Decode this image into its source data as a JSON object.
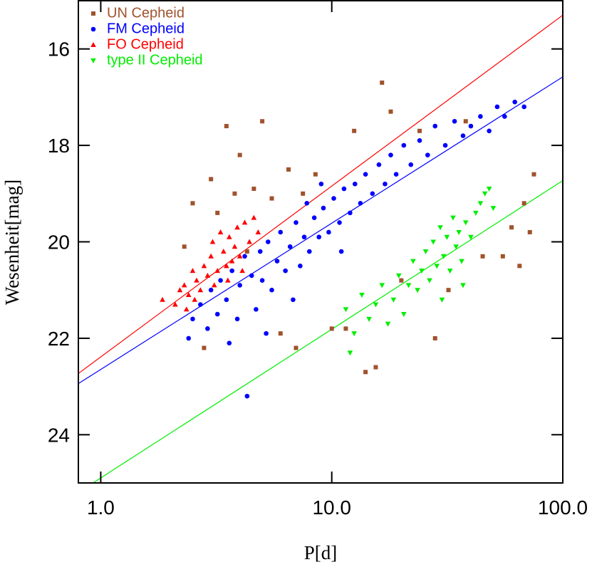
{
  "chart_data": {
    "type": "scatter",
    "x_label": "P[d]",
    "y_label": "Wesenheit[mag]",
    "x_scale": "log",
    "xlim": [
      0.8,
      100
    ],
    "ylim": [
      25,
      15
    ],
    "xticks": [
      {
        "value": 1,
        "label": "1.0"
      },
      {
        "value": 10,
        "label": "10.0"
      },
      {
        "value": 100,
        "label": "100.0"
      }
    ],
    "yticks": [
      16,
      18,
      20,
      22,
      24
    ],
    "legend": "top-left",
    "series": [
      {
        "name": "UN Cepheid",
        "color": "#a0522d",
        "marker": "square",
        "x": [
          2.3,
          2.5,
          2.8,
          3.0,
          3.2,
          3.5,
          3.8,
          4.0,
          4.3,
          4.6,
          5.0,
          5.5,
          6.0,
          6.5,
          7.0,
          7.5,
          8.5,
          10.0,
          11.5,
          12.5,
          14.0,
          15.5,
          16.5,
          18.0,
          20.0,
          24.0,
          28.0,
          32.0,
          38.0,
          45.0,
          55.0,
          60.0,
          65.0,
          72.0,
          75.0,
          68.0
        ],
        "values": [
          20.1,
          19.2,
          22.2,
          18.7,
          19.4,
          17.6,
          19.0,
          18.2,
          20.2,
          18.9,
          17.5,
          19.1,
          21.9,
          18.5,
          22.2,
          19.0,
          18.6,
          21.8,
          21.8,
          17.7,
          22.7,
          22.6,
          16.7,
          17.3,
          20.8,
          17.7,
          22.0,
          21.0,
          17.5,
          20.3,
          20.3,
          19.7,
          20.5,
          19.8,
          18.6,
          19.2
        ]
      },
      {
        "name": "FM Cepheid",
        "color": "#0000ff",
        "marker": "circle",
        "x": [
          2.4,
          2.5,
          2.7,
          2.9,
          3.0,
          3.2,
          3.3,
          3.5,
          3.7,
          3.9,
          4.0,
          4.2,
          4.3,
          4.5,
          4.7,
          4.9,
          5.0,
          5.3,
          5.5,
          5.8,
          6.0,
          6.3,
          6.6,
          7.0,
          7.3,
          7.6,
          8.0,
          8.4,
          8.8,
          9.2,
          9.7,
          10.2,
          10.8,
          11.3,
          12.0,
          12.6,
          13.3,
          14.0,
          15.0,
          16.0,
          17.0,
          18.0,
          19.0,
          20.5,
          22.0,
          24.0,
          26.0,
          28.0,
          31.0,
          34.0,
          37.0,
          40.0,
          44.0,
          48.0,
          52.0,
          56.0,
          62.0,
          68.0,
          5.2,
          6.8,
          3.6,
          11.0,
          9.0,
          7.8
        ],
        "values": [
          22.0,
          21.6,
          21.3,
          21.8,
          21.0,
          21.5,
          20.8,
          21.2,
          20.6,
          21.6,
          20.9,
          20.3,
          23.2,
          20.7,
          21.4,
          20.2,
          20.8,
          20.0,
          21.0,
          20.4,
          19.8,
          20.6,
          20.1,
          19.6,
          20.5,
          19.9,
          20.2,
          19.5,
          19.9,
          19.3,
          19.8,
          19.1,
          19.6,
          18.9,
          19.4,
          18.8,
          19.2,
          18.6,
          19.0,
          18.4,
          18.8,
          18.2,
          18.6,
          18.0,
          18.4,
          17.9,
          18.2,
          17.6,
          18.0,
          17.5,
          17.8,
          17.6,
          17.4,
          17.7,
          17.2,
          17.4,
          17.1,
          17.2,
          21.9,
          21.2,
          22.1,
          20.2,
          18.8,
          19.2
        ]
      },
      {
        "name": "FO Cepheid",
        "color": "#ff0000",
        "marker": "triangle-up",
        "x": [
          1.85,
          2.1,
          2.2,
          2.3,
          2.4,
          2.5,
          2.6,
          2.7,
          2.8,
          2.9,
          3.0,
          3.1,
          3.2,
          3.3,
          3.4,
          3.5,
          3.6,
          3.7,
          3.8,
          3.9,
          4.0,
          4.2,
          4.4,
          4.6,
          4.8,
          2.35,
          2.55,
          3.05,
          3.55,
          4.1
        ],
        "values": [
          21.2,
          21.3,
          21.0,
          20.9,
          21.1,
          20.6,
          20.8,
          21.0,
          20.5,
          20.7,
          20.3,
          20.9,
          20.6,
          19.8,
          20.2,
          20.5,
          19.9,
          20.4,
          20.1,
          19.7,
          20.3,
          19.6,
          20.0,
          19.5,
          19.8,
          21.4,
          21.2,
          20.0,
          20.8,
          20.6
        ]
      },
      {
        "name": "type II Cepheid",
        "color": "#00ee00",
        "marker": "triangle-down",
        "x": [
          11.5,
          12.5,
          13.5,
          14.5,
          15.5,
          16.5,
          17.5,
          18.5,
          19.5,
          20.5,
          21.5,
          22.5,
          23.5,
          24.5,
          25.5,
          26.5,
          27.5,
          28.5,
          29.5,
          30.5,
          31.5,
          32.5,
          33.5,
          34.5,
          35.5,
          36.5,
          38.0,
          40.0,
          42.0,
          44.0,
          46.0,
          48.0,
          50.0,
          12.0,
          30.0,
          37.0
        ],
        "values": [
          21.4,
          21.9,
          21.1,
          21.6,
          21.3,
          20.9,
          21.7,
          21.2,
          20.7,
          21.5,
          20.9,
          20.4,
          21.0,
          20.6,
          20.2,
          20.8,
          20.0,
          20.5,
          19.7,
          20.3,
          19.9,
          20.6,
          19.5,
          20.1,
          19.8,
          20.4,
          19.6,
          19.9,
          19.4,
          19.2,
          19.0,
          18.9,
          19.3,
          22.3,
          21.2,
          20.9
        ]
      }
    ],
    "fit_lines": [
      {
        "color": "#ff0000",
        "x": [
          0.8,
          100
        ],
        "values": [
          22.73,
          15.3
        ]
      },
      {
        "color": "#0000ff",
        "x": [
          0.8,
          100
        ],
        "values": [
          22.94,
          16.58
        ]
      },
      {
        "color": "#00ee00",
        "x": [
          0.925,
          100
        ],
        "values": [
          25,
          18.73
        ]
      }
    ]
  }
}
